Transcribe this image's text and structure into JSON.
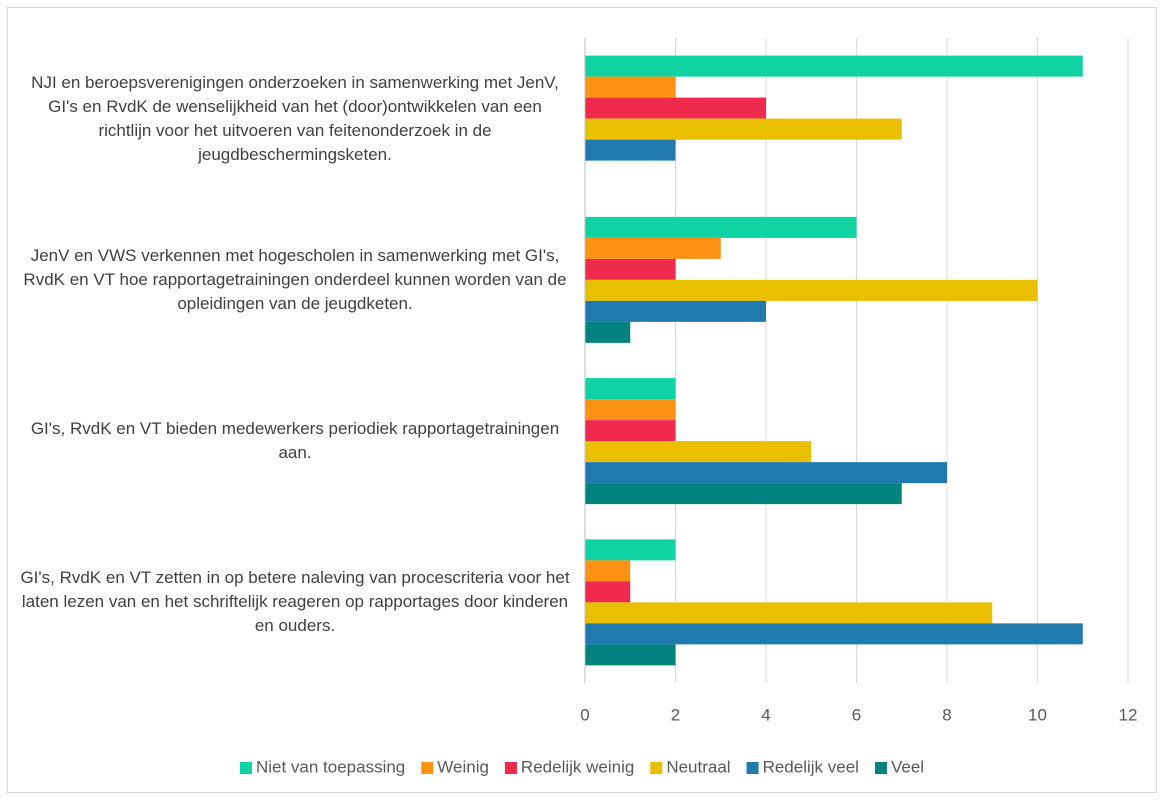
{
  "chart_data": {
    "type": "barh",
    "categories": [
      "NJI en beroepsverenigingen onderzoeken in samenwerking met JenV, GI's en RvdK de wenselijkheid van het (door)ontwikkelen van een richtlijn voor het uitvoeren van feitenonderzoek in de jeugdbeschermingsketen.",
      "JenV en VWS verkennen met hogescholen in samenwerking met GI's, RvdK en VT hoe rapportagetrainingen onderdeel kunnen worden van de opleidingen van de jeugdketen.",
      "GI's, RvdK en VT bieden medewerkers periodiek rapportagetrainingen aan.",
      "GI's, RvdK en VT zetten in op betere naleving van procescriteria voor het laten lezen van en het schriftelijk reageren op rapportages door kinderen en ouders."
    ],
    "series": [
      {
        "name": "Niet van toepassing",
        "color": "#0fd3a2",
        "values": [
          11,
          6,
          2,
          2
        ]
      },
      {
        "name": "Weinig",
        "color": "#ff9215",
        "values": [
          2,
          3,
          2,
          1
        ]
      },
      {
        "name": "Redelijk weinig",
        "color": "#f02a4c",
        "values": [
          4,
          2,
          2,
          1
        ]
      },
      {
        "name": "Neutraal",
        "color": "#e8c000",
        "values": [
          7,
          10,
          5,
          9
        ]
      },
      {
        "name": "Redelijk veel",
        "color": "#217aad",
        "values": [
          2,
          4,
          8,
          11
        ]
      },
      {
        "name": "Veel",
        "color": "#00837f",
        "values": [
          0,
          1,
          7,
          2
        ]
      }
    ],
    "xlim": [
      0,
      12
    ],
    "xticks": [
      0,
      2,
      4,
      6,
      8,
      10,
      12
    ],
    "grid": true,
    "legend": "bottom"
  }
}
